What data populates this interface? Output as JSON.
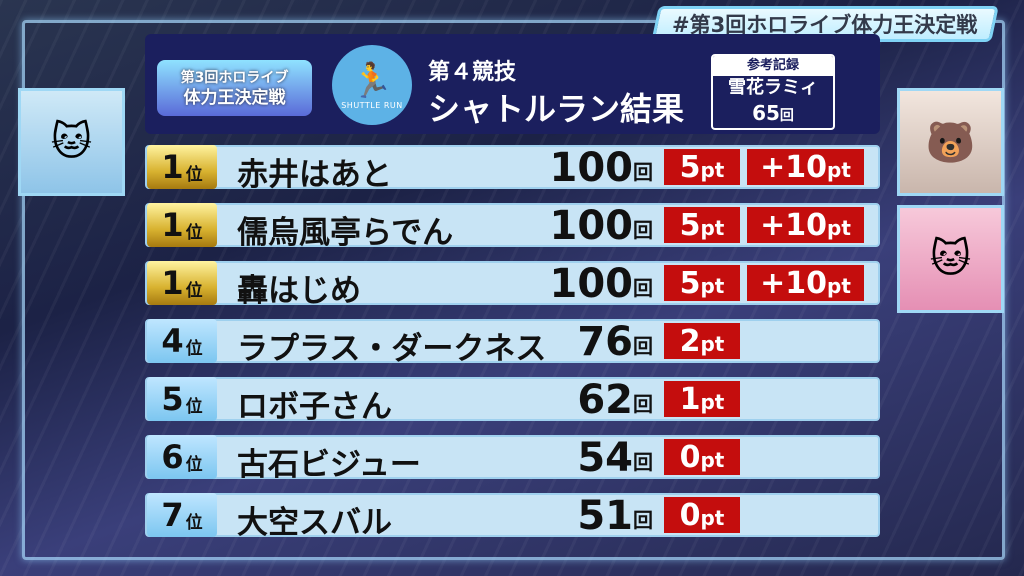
{
  "hashtag": "#第3回ホロライブ体力王決定戦",
  "logo": {
    "line1": "第3回ホロライブ",
    "line2": "体力王決定戦"
  },
  "event": {
    "icon": "running-person-icon",
    "icon_caption": "SHUTTLE RUN",
    "number": "第４競技",
    "title": "シャトルラン結果"
  },
  "reference": {
    "label": "参考記録",
    "name": "雪花ラミィ",
    "count": "65",
    "unit": "回"
  },
  "colors": {
    "header": "#1b1f5e",
    "row": "#c8e4f5",
    "points": "#c40d0d",
    "gold": "#d8b230"
  },
  "results": [
    {
      "rank": "1",
      "rank_suffix": "位",
      "name": "赤井はあと",
      "count": "100",
      "unit": "回",
      "pt": "5",
      "pt_unit": "pt",
      "bonus": "+10",
      "bonus_unit": "pt"
    },
    {
      "rank": "1",
      "rank_suffix": "位",
      "name": "儒烏風亭らでん",
      "count": "100",
      "unit": "回",
      "pt": "5",
      "pt_unit": "pt",
      "bonus": "+10",
      "bonus_unit": "pt"
    },
    {
      "rank": "1",
      "rank_suffix": "位",
      "name": "轟はじめ",
      "count": "100",
      "unit": "回",
      "pt": "5",
      "pt_unit": "pt",
      "bonus": "+10",
      "bonus_unit": "pt"
    },
    {
      "rank": "4",
      "rank_suffix": "位",
      "name": "ラプラス・ダークネス",
      "count": "76",
      "unit": "回",
      "pt": "2",
      "pt_unit": "pt"
    },
    {
      "rank": "5",
      "rank_suffix": "位",
      "name": "ロボ子さん",
      "count": "62",
      "unit": "回",
      "pt": "1",
      "pt_unit": "pt"
    },
    {
      "rank": "6",
      "rank_suffix": "位",
      "name": "古石ビジュー",
      "count": "54",
      "unit": "回",
      "pt": "0",
      "pt_unit": "pt"
    },
    {
      "rank": "7",
      "rank_suffix": "位",
      "name": "大空スバル",
      "count": "51",
      "unit": "回",
      "pt": "0",
      "pt_unit": "pt"
    }
  ]
}
